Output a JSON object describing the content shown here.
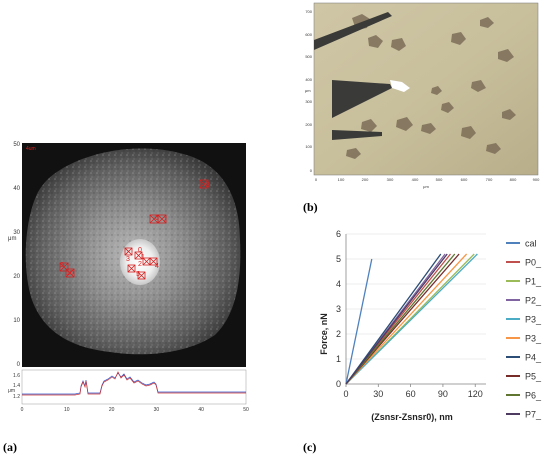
{
  "figure": {
    "labels": {
      "a": "(a)",
      "b": "(b)",
      "c": "(c)"
    }
  },
  "panel_a": {
    "image_tag": "4um",
    "y_axis": {
      "label": "μm",
      "ticks": [
        "50",
        "40",
        "30",
        "20",
        "10",
        "0"
      ]
    },
    "x_axis": {
      "ticks": [
        "0",
        "10",
        "20",
        "30",
        "40",
        "50"
      ]
    },
    "markers": [
      "8",
      "6",
      "7",
      "0",
      "1",
      "2",
      "3",
      "4",
      "5",
      "9",
      "10"
    ],
    "profile": {
      "y_label": "μm",
      "y_ticks": [
        "1.6",
        "1.4",
        "1.2"
      ],
      "x_label": "μm",
      "x_ticks": [
        "0",
        "10",
        "20",
        "30",
        "40",
        "50"
      ]
    }
  },
  "panel_b": {
    "y_axis": {
      "label": "μm",
      "ticks": [
        "700",
        "600",
        "500",
        "400",
        "300",
        "200",
        "100",
        "0"
      ]
    },
    "x_axis": {
      "label": "μm",
      "ticks": [
        "0",
        "100",
        "200",
        "300",
        "400",
        "500",
        "600",
        "700",
        "800",
        "900"
      ]
    }
  },
  "chart_data": {
    "type": "line",
    "title": "",
    "xlabel": "(Zsnsr-Zsnsr0), nm",
    "ylabel": "Force, nN",
    "xlim": [
      0,
      130
    ],
    "ylim": [
      0,
      6
    ],
    "x_ticks": [
      0,
      30,
      60,
      90,
      120
    ],
    "y_ticks": [
      0,
      1,
      2,
      3,
      4,
      5,
      6
    ],
    "grid": true,
    "legend_position": "right",
    "series": [
      {
        "name": "cal",
        "color": "#4f81bd",
        "points": [
          [
            0,
            0
          ],
          [
            24,
            5.0
          ]
        ]
      },
      {
        "name": "P0_",
        "color": "#c0504d",
        "points": [
          [
            0,
            0
          ],
          [
            97,
            5.2
          ]
        ]
      },
      {
        "name": "P1_",
        "color": "#9bbb59",
        "points": [
          [
            0,
            0
          ],
          [
            119,
            5.2
          ]
        ]
      },
      {
        "name": "P2_",
        "color": "#8064a2",
        "points": [
          [
            0,
            0
          ],
          [
            92,
            5.2
          ]
        ]
      },
      {
        "name": "P3_",
        "color": "#4bacc6",
        "points": [
          [
            0,
            0
          ],
          [
            122,
            5.2
          ]
        ]
      },
      {
        "name": "P3_",
        "color": "#f79646",
        "points": [
          [
            0,
            0
          ],
          [
            112,
            5.2
          ]
        ]
      },
      {
        "name": "P4_",
        "color": "#2c4d75",
        "points": [
          [
            0,
            0
          ],
          [
            88,
            5.2
          ]
        ]
      },
      {
        "name": "P5_",
        "color": "#772c2a",
        "points": [
          [
            0,
            0
          ],
          [
            105,
            5.2
          ]
        ]
      },
      {
        "name": "P6_",
        "color": "#5f7530",
        "points": [
          [
            0,
            0
          ],
          [
            101,
            5.2
          ]
        ]
      },
      {
        "name": "P7_",
        "color": "#4d3b62",
        "points": [
          [
            0,
            0
          ],
          [
            94,
            5.2
          ]
        ]
      }
    ]
  }
}
